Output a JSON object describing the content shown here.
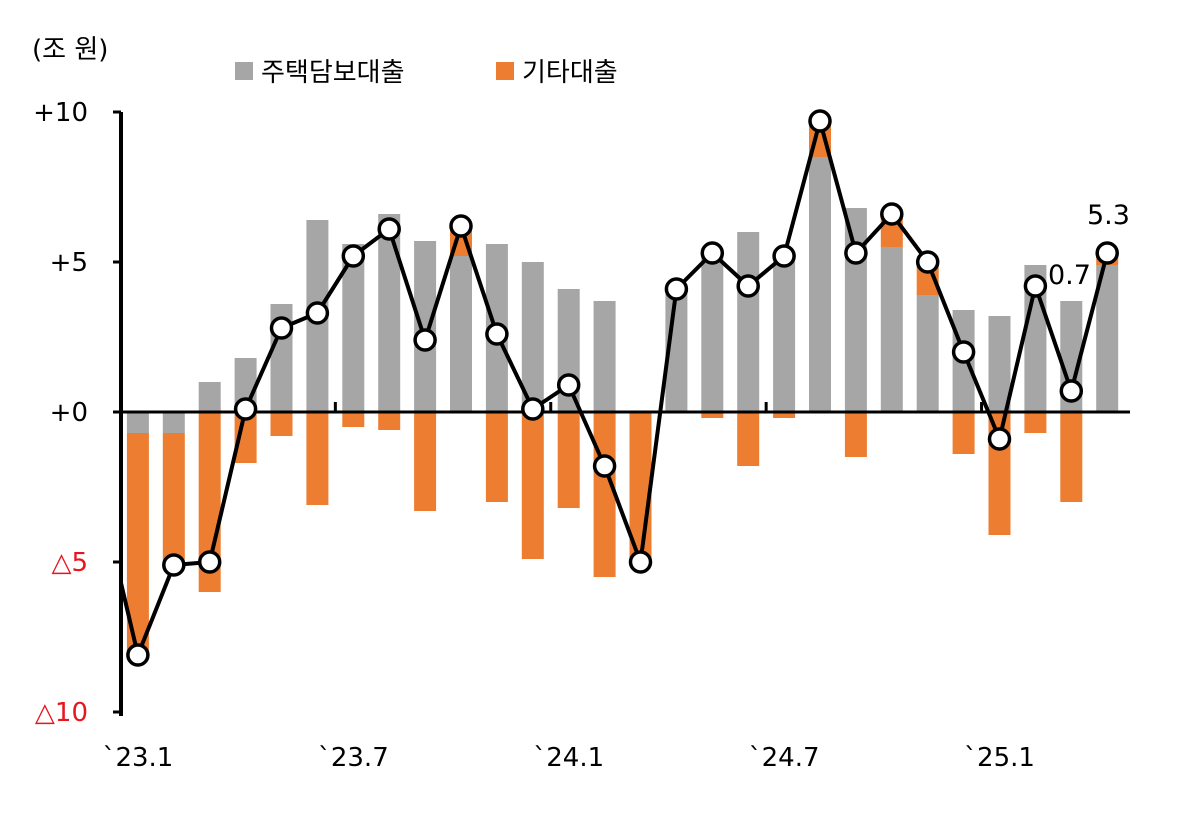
{
  "chart_data": {
    "type": "bar+line",
    "unit": "(조 원)",
    "x_tick_labels": [
      "`23.1",
      "`23.7",
      "`24.1",
      "`24.7",
      "`25.1"
    ],
    "y_tick_labels": [
      "+10",
      "+5",
      "+0",
      "△5",
      "△10"
    ],
    "ylim": [
      -10,
      10
    ],
    "legend": {
      "position": "top",
      "items": [
        {
          "name": "주택담보대출",
          "color": "#a6a6a6"
        },
        {
          "name": "기타대출",
          "color": "#ed7d31"
        }
      ]
    },
    "months": [
      "2023-01",
      "2023-02",
      "2023-03",
      "2023-04",
      "2023-05",
      "2023-06",
      "2023-07",
      "2023-08",
      "2023-09",
      "2023-10",
      "2023-11",
      "2023-12",
      "2024-01",
      "2024-02",
      "2024-03",
      "2024-04",
      "2024-05",
      "2024-06",
      "2024-07",
      "2024-08",
      "2024-09",
      "2024-10",
      "2024-11",
      "2024-12",
      "2025-01",
      "2025-02",
      "2025-03",
      "2025-04",
      "2025-05",
      "2025-06",
      "2025-07"
    ],
    "series": [
      {
        "name": "주택담보대출",
        "type": "bar",
        "color": "#a6a6a6",
        "values": [
          null,
          -0.7,
          -0.7,
          1.0,
          1.8,
          3.6,
          6.4,
          5.6,
          6.6,
          5.7,
          5.2,
          5.6,
          5.0,
          4.1,
          3.7,
          0.0,
          4.1,
          5.2,
          6.0,
          5.3,
          8.5,
          6.8,
          5.5,
          3.9,
          3.4,
          3.2,
          4.9,
          3.7,
          4.9,
          null,
          null
        ]
      },
      {
        "name": "기타대출",
        "type": "bar",
        "color": "#ed7d31",
        "values": [
          null,
          -7.4,
          -4.4,
          -6.0,
          -1.7,
          -0.8,
          -3.1,
          -0.5,
          -0.6,
          -3.3,
          1.0,
          -3.0,
          -4.9,
          -3.2,
          -5.5,
          -4.9,
          0.0,
          -0.2,
          -1.8,
          -0.2,
          1.3,
          -1.5,
          1.0,
          1.0,
          -1.4,
          -4.1,
          -0.7,
          -3.0,
          0.4,
          null,
          null
        ]
      },
      {
        "name": "",
        "type": "line",
        "values": [
          null,
          -8.1,
          -5.1,
          -5.0,
          0.1,
          2.8,
          3.3,
          5.2,
          6.1,
          2.4,
          6.2,
          2.6,
          0.1,
          0.9,
          -1.8,
          -5.0,
          4.1,
          5.3,
          4.2,
          5.2,
          9.7,
          5.3,
          6.6,
          5.0,
          2.0,
          -0.9,
          4.2,
          0.7,
          5.3,
          null,
          null
        ]
      }
    ],
    "annotations": [
      "0.7",
      "5.3"
    ]
  }
}
